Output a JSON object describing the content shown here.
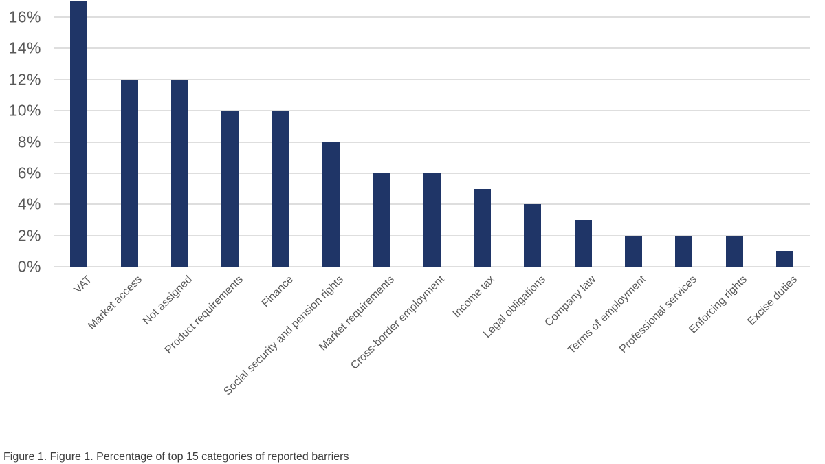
{
  "figure": {
    "caption": "Figure 1. Figure 1. Percentage of top 15 categories of reported barriers",
    "background": "#ffffff"
  },
  "chart_data": {
    "type": "bar",
    "title": "",
    "categories": [
      "VAT",
      "Market access",
      "Not assigned",
      "Product requirements",
      "Finance",
      "Social security and pension rights",
      "Market requirements",
      "Cross-border employment",
      "Income tax",
      "Legal obligations",
      "Company law",
      "Terms of employment",
      "Professional services",
      "Enforcing rights",
      "Excise duties"
    ],
    "values": [
      17,
      12,
      12,
      10,
      10,
      8,
      6,
      6,
      5,
      4,
      3,
      2,
      2,
      2,
      1
    ],
    "unit": "%",
    "xlabel": "",
    "ylabel": "",
    "ylim": [
      0,
      16
    ],
    "yticks": [
      0,
      2,
      4,
      6,
      8,
      10,
      12,
      14,
      16
    ],
    "ytick_labels": [
      "0%",
      "2%",
      "4%",
      "6%",
      "8%",
      "10%",
      "12%",
      "14%",
      "16%"
    ],
    "grid": true,
    "legend_position": "none",
    "bar_color": "#1f3567",
    "gridline_color": "#dedede",
    "axis_text_color": "#595959",
    "caption_color": "#3d3d3d"
  }
}
